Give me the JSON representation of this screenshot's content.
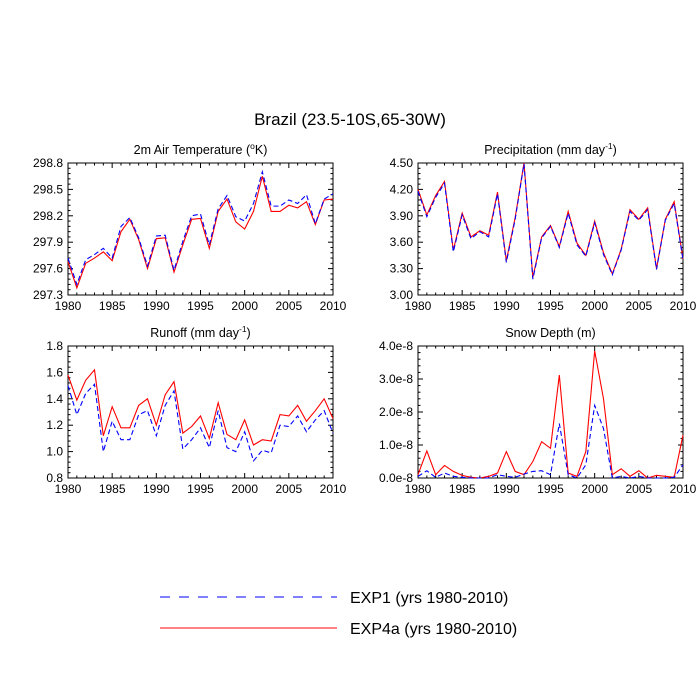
{
  "figure_title": "Brazil (23.5-10S,65-30W)",
  "colors": {
    "EXP1": "#0000ff",
    "EXP4a": "#ff0000"
  },
  "legend": {
    "items": [
      {
        "key": "EXP1",
        "label": "EXP1 (yrs 1980-2010)",
        "style": "dashed"
      },
      {
        "key": "EXP4a",
        "label": "EXP4a (yrs 1980-2010)",
        "style": "solid"
      }
    ]
  },
  "chart_data": [
    {
      "type": "line",
      "title": "2m Air Temperature (",
      "title_sup": "o",
      "title_post": "K)",
      "xlim": [
        1980,
        2010
      ],
      "xticks": [
        "1980",
        "1985",
        "1990",
        "1995",
        "2000",
        "2005",
        "2010"
      ],
      "ylim": [
        297.3,
        298.8
      ],
      "yticks": [
        "297.3",
        "297.6",
        "297.9",
        "298.2",
        "298.5",
        "298.8"
      ],
      "x": [
        1980,
        1981,
        1982,
        1983,
        1984,
        1985,
        1986,
        1987,
        1988,
        1989,
        1990,
        1991,
        1992,
        1993,
        1994,
        1995,
        1996,
        1997,
        1998,
        1999,
        2000,
        2001,
        2002,
        2003,
        2004,
        2005,
        2006,
        2007,
        2008,
        2009,
        2010
      ],
      "series": [
        {
          "name": "EXP1",
          "values": [
            297.72,
            297.42,
            297.7,
            297.76,
            297.83,
            297.72,
            298.08,
            298.18,
            297.95,
            297.63,
            297.97,
            297.98,
            297.58,
            297.91,
            298.2,
            298.22,
            297.87,
            298.28,
            298.43,
            298.19,
            298.14,
            298.34,
            298.7,
            298.31,
            298.31,
            298.38,
            298.34,
            298.44,
            298.11,
            298.39,
            298.45
          ]
        },
        {
          "name": "EXP4a",
          "values": [
            297.68,
            297.38,
            297.66,
            297.72,
            297.79,
            297.69,
            298.02,
            298.16,
            297.93,
            297.6,
            297.94,
            297.95,
            297.56,
            297.87,
            298.16,
            298.17,
            297.83,
            298.25,
            298.39,
            298.13,
            298.05,
            298.25,
            298.65,
            298.25,
            298.25,
            298.32,
            298.29,
            298.36,
            298.1,
            298.38,
            298.39
          ]
        }
      ]
    },
    {
      "type": "line",
      "title": "Precipitation (mm day",
      "title_sup": "-1",
      "title_post": ")",
      "xlim": [
        1980,
        2010
      ],
      "xticks": [
        "1980",
        "1985",
        "1990",
        "1995",
        "2000",
        "2005",
        "2010"
      ],
      "ylim": [
        3.0,
        4.5
      ],
      "yticks": [
        "3.00",
        "3.30",
        "3.60",
        "3.90",
        "4.20",
        "4.50"
      ],
      "x": [
        1980,
        1981,
        1982,
        1983,
        1984,
        1985,
        1986,
        1987,
        1988,
        1989,
        1990,
        1991,
        1992,
        1993,
        1994,
        1995,
        1996,
        1997,
        1998,
        1999,
        2000,
        2001,
        2002,
        2003,
        2004,
        2005,
        2006,
        2007,
        2008,
        2009,
        2010
      ],
      "series": [
        {
          "name": "EXP1",
          "values": [
            4.18,
            3.89,
            4.11,
            4.27,
            3.49,
            3.91,
            3.64,
            3.72,
            3.66,
            4.15,
            3.37,
            3.86,
            4.49,
            3.18,
            3.65,
            3.78,
            3.54,
            3.93,
            3.57,
            3.44,
            3.82,
            3.46,
            3.23,
            3.51,
            3.95,
            3.85,
            3.97,
            3.29,
            3.85,
            4.04,
            3.4
          ]
        },
        {
          "name": "EXP4a",
          "values": [
            4.2,
            3.91,
            4.13,
            4.29,
            3.51,
            3.93,
            3.66,
            3.73,
            3.68,
            4.17,
            3.39,
            3.88,
            4.5,
            3.2,
            3.66,
            3.79,
            3.55,
            3.95,
            3.59,
            3.45,
            3.84,
            3.48,
            3.24,
            3.52,
            3.97,
            3.86,
            3.99,
            3.3,
            3.86,
            4.06,
            3.41
          ]
        }
      ]
    },
    {
      "type": "line",
      "title": "Runoff (mm day",
      "title_sup": "-1",
      "title_post": ")",
      "xlim": [
        1980,
        2010
      ],
      "xticks": [
        "1980",
        "1985",
        "1990",
        "1995",
        "2000",
        "2005",
        "2010"
      ],
      "ylim": [
        0.8,
        1.8
      ],
      "yticks": [
        "0.8",
        "1.0",
        "1.2",
        "1.4",
        "1.6",
        "1.8"
      ],
      "x": [
        1980,
        1981,
        1982,
        1983,
        1984,
        1985,
        1986,
        1987,
        1988,
        1989,
        1990,
        1991,
        1992,
        1993,
        1994,
        1995,
        1996,
        1997,
        1998,
        1999,
        2000,
        2001,
        2002,
        2003,
        2004,
        2005,
        2006,
        2007,
        2008,
        2009,
        2010
      ],
      "series": [
        {
          "name": "EXP1",
          "values": [
            1.5,
            1.28,
            1.44,
            1.51,
            1.0,
            1.23,
            1.09,
            1.09,
            1.28,
            1.31,
            1.12,
            1.35,
            1.46,
            1.02,
            1.09,
            1.18,
            1.03,
            1.31,
            1.03,
            1.0,
            1.15,
            0.93,
            1.01,
            0.99,
            1.2,
            1.19,
            1.27,
            1.15,
            1.24,
            1.31,
            1.14
          ]
        },
        {
          "name": "EXP4a",
          "values": [
            1.58,
            1.39,
            1.54,
            1.62,
            1.12,
            1.34,
            1.18,
            1.18,
            1.35,
            1.4,
            1.2,
            1.43,
            1.53,
            1.14,
            1.19,
            1.27,
            1.1,
            1.37,
            1.13,
            1.09,
            1.24,
            1.05,
            1.09,
            1.08,
            1.28,
            1.27,
            1.35,
            1.23,
            1.31,
            1.4,
            1.25
          ]
        }
      ]
    },
    {
      "type": "line",
      "title": "Snow Depth (m)",
      "title_sup": "",
      "title_post": "",
      "xlim": [
        1980,
        2010
      ],
      "xticks": [
        "1980",
        "1985",
        "1990",
        "1995",
        "2000",
        "2005",
        "2010"
      ],
      "ylim": [
        0,
        4e-08
      ],
      "yticks": [
        "0.0e-8",
        "1.0e-8",
        "2.0e-8",
        "3.0e-8",
        "4.0e-8"
      ],
      "x": [
        1980,
        1981,
        1982,
        1983,
        1984,
        1985,
        1986,
        1987,
        1988,
        1989,
        1990,
        1991,
        1992,
        1993,
        1994,
        1995,
        1996,
        1997,
        1998,
        1999,
        2000,
        2001,
        2002,
        2003,
        2004,
        2005,
        2006,
        2007,
        2008,
        2009,
        2010
      ],
      "series": [
        {
          "name": "EXP1",
          "values": [
            5e-10,
            2.2e-09,
            2e-10,
            1.5e-09,
            5e-10,
            2e-10,
            0.0,
            0.0,
            0.0,
            1e-09,
            5e-10,
            2e-10,
            1.2e-09,
            2e-09,
            2.2e-09,
            1e-09,
            1.65e-08,
            1e-09,
            0.0,
            4e-09,
            2.2e-08,
            1.5e-08,
            0.0,
            5e-10,
            0.0,
            5e-10,
            0.0,
            0.0,
            0.0,
            2e-10,
            4e-09
          ]
        },
        {
          "name": "EXP4a",
          "values": [
            1e-09,
            8.2e-09,
            1e-09,
            3.8e-09,
            2e-09,
            8e-10,
            2e-10,
            0.0,
            5e-10,
            1.5e-09,
            8e-09,
            2e-09,
            1e-09,
            5e-09,
            1.1e-08,
            9e-09,
            3.12e-08,
            1.5e-09,
            5e-10,
            8e-09,
            3.85e-08,
            2.4e-08,
            1e-09,
            2.8e-09,
            5e-10,
            2.2e-09,
            0.0,
            8e-10,
            5e-10,
            2e-10,
            1.3e-08
          ]
        }
      ]
    }
  ]
}
